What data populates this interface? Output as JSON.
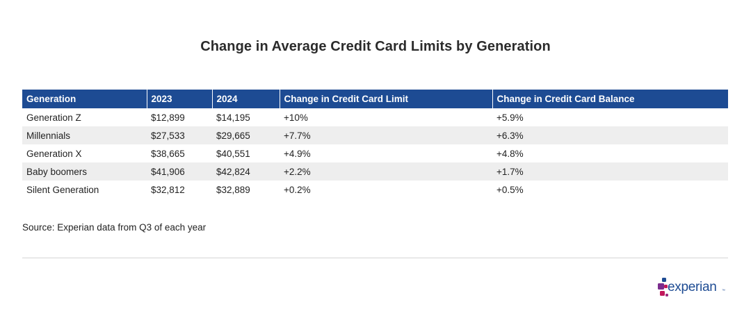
{
  "chart_data": {
    "type": "table",
    "title": "Change in Average Credit Card Limits by Generation",
    "columns": [
      "Generation",
      "2023",
      "2024",
      "Change in Credit Card Limit",
      "Change in Credit Card Balance"
    ],
    "rows": [
      [
        "Generation Z",
        "$12,899",
        "$14,195",
        "+10%",
        "+5.9%"
      ],
      [
        "Millennials",
        "$27,533",
        "$29,665",
        "+7.7%",
        "+6.3%"
      ],
      [
        "Generation X",
        "$38,665",
        "$40,551",
        "+4.9%",
        "+4.8%"
      ],
      [
        "Baby boomers",
        "$41,906",
        "$42,824",
        "+2.2%",
        "+1.7%"
      ],
      [
        "Silent Generation",
        "$32,812",
        "$32,889",
        "+0.2%",
        "+0.5%"
      ]
    ],
    "header_color": "#1d4b93",
    "stripe_color": "#eeeeee"
  },
  "source": "Source: Experian data from Q3 of each year",
  "logo": {
    "text": "experian",
    "trademark": "™",
    "colors": [
      "#1d4b93",
      "#9c2a7f",
      "#c2185b",
      "#7b2d8e"
    ]
  }
}
